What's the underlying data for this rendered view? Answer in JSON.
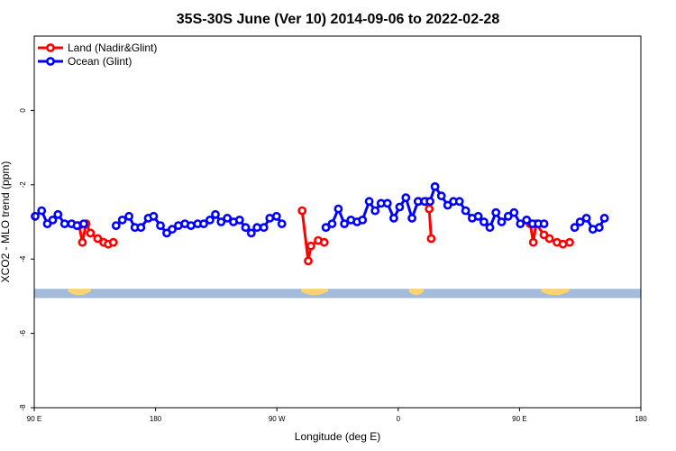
{
  "chart_data": {
    "type": "line",
    "title": "35S-30S June (Ver 10)   2014-09-06 to 2022-02-28",
    "xlabel": "Longitude (deg E)",
    "ylabel": "XCO2 - MLO trend (ppm)",
    "xlim": [
      90,
      540
    ],
    "ylim": [
      -8,
      2
    ],
    "x_ticks": [
      {
        "value": 90,
        "label": "90 E"
      },
      {
        "value": 180,
        "label": "180"
      },
      {
        "value": 270,
        "label": "90 W"
      },
      {
        "value": 360,
        "label": "0"
      },
      {
        "value": 450,
        "label": "90 E"
      },
      {
        "value": 540,
        "label": "180"
      }
    ],
    "y_ticks": [
      {
        "value": 0,
        "label": "0"
      },
      {
        "value": -2,
        "label": "-2"
      },
      {
        "value": -4,
        "label": "-4"
      },
      {
        "value": -6,
        "label": "-6"
      },
      {
        "value": -8,
        "label": "-8"
      }
    ],
    "legend_position": "top-left",
    "series": [
      {
        "name": "Land (Nadir&Glint)",
        "color": "#ff0000",
        "segments": [
          [
            [
              123.3,
              -3.1
            ],
            [
              125.7,
              -3.55
            ],
            [
              128.5,
              -3.05
            ],
            [
              131.7,
              -3.3
            ],
            [
              137.1,
              -3.45
            ],
            [
              141.5,
              -3.55
            ],
            [
              144.9,
              -3.6
            ],
            [
              148.7,
              -3.55
            ]
          ],
          [
            [
              288.7,
              -2.7
            ],
            [
              293.3,
              -4.05
            ],
            [
              295.2,
              -3.65
            ],
            [
              300.6,
              -3.5
            ],
            [
              305.1,
              -3.55
            ]
          ],
          [
            [
              375.2,
              -2.45
            ],
            [
              380.6,
              -2.45
            ],
            [
              383.0,
              -2.65
            ],
            [
              384.5,
              -3.45
            ]
          ],
          [
            [
              457.9,
              -3.05
            ],
            [
              460.2,
              -3.55
            ],
            [
              462.3,
              -3.05
            ],
            [
              468.1,
              -3.35
            ],
            [
              472.2,
              -3.45
            ],
            [
              477.8,
              -3.55
            ],
            [
              482.2,
              -3.6
            ],
            [
              487.2,
              -3.55
            ]
          ]
        ]
      },
      {
        "name": "Ocean (Glint)",
        "color": "#0000ff",
        "points": [
          [
            90.7,
            -2.85
          ],
          [
            95.5,
            -2.7
          ],
          [
            99.7,
            -3.05
          ],
          [
            103.7,
            -2.95
          ],
          [
            107.6,
            -2.8
          ],
          [
            112.5,
            -3.05
          ],
          [
            117.7,
            -3.05
          ],
          [
            121.7,
            -3.1
          ],
          [
            126.7,
            -3.05
          ],
          [
            150.7,
            -3.1
          ],
          [
            155.3,
            -2.95
          ],
          [
            160.3,
            -2.85
          ],
          [
            164.7,
            -3.15
          ],
          [
            169.1,
            -3.15
          ],
          [
            174.6,
            -2.9
          ],
          [
            178.5,
            -2.85
          ],
          [
            183.6,
            -3.1
          ],
          [
            188.3,
            -3.3
          ],
          [
            192.3,
            -3.2
          ],
          [
            196.9,
            -3.1
          ],
          [
            201.7,
            -3.05
          ],
          [
            206.3,
            -3.1
          ],
          [
            211.2,
            -3.05
          ],
          [
            215.7,
            -3.05
          ],
          [
            220.3,
            -2.95
          ],
          [
            224.4,
            -2.8
          ],
          [
            228.6,
            -3.0
          ],
          [
            233.2,
            -2.9
          ],
          [
            237.8,
            -3.0
          ],
          [
            242.3,
            -2.95
          ],
          [
            246.8,
            -3.15
          ],
          [
            251.0,
            -3.3
          ],
          [
            255.3,
            -3.15
          ],
          [
            260.3,
            -3.15
          ],
          [
            264.7,
            -2.9
          ],
          [
            269.7,
            -2.85
          ],
          [
            273.7,
            -3.05
          ],
          [
            306.4,
            -3.15
          ],
          [
            310.9,
            -3.05
          ],
          [
            315.6,
            -2.65
          ],
          [
            320.1,
            -3.05
          ],
          [
            324.9,
            -2.95
          ],
          [
            329.5,
            -3.0
          ],
          [
            333.5,
            -2.95
          ],
          [
            338.5,
            -2.45
          ],
          [
            342.9,
            -2.7
          ],
          [
            347.3,
            -2.5
          ],
          [
            352.0,
            -2.5
          ],
          [
            356.7,
            -2.9
          ],
          [
            361.1,
            -2.6
          ],
          [
            365.7,
            -2.35
          ],
          [
            370.2,
            -2.9
          ],
          [
            374.7,
            -2.45
          ],
          [
            379.6,
            -2.45
          ],
          [
            383.6,
            -2.45
          ],
          [
            387.3,
            -2.05
          ],
          [
            392.0,
            -2.3
          ],
          [
            396.7,
            -2.55
          ],
          [
            401.0,
            -2.45
          ],
          [
            405.4,
            -2.45
          ],
          [
            410.0,
            -2.7
          ],
          [
            414.9,
            -2.9
          ],
          [
            419.4,
            -2.85
          ],
          [
            423.6,
            -3.0
          ],
          [
            428.0,
            -3.15
          ],
          [
            432.5,
            -2.75
          ],
          [
            436.7,
            -3.0
          ],
          [
            441.6,
            -2.85
          ],
          [
            445.9,
            -2.75
          ],
          [
            450.6,
            -3.05
          ],
          [
            455.3,
            -2.95
          ],
          [
            459.6,
            -3.05
          ],
          [
            464.0,
            -3.05
          ],
          [
            468.2,
            -3.05
          ],
          [
            490.9,
            -3.15
          ],
          [
            494.9,
            -3.0
          ],
          [
            499.6,
            -2.9
          ],
          [
            504.4,
            -3.2
          ],
          [
            509.1,
            -3.15
          ],
          [
            513.0,
            -2.9
          ]
        ]
      }
    ],
    "land_mask": {
      "base_color": "#a4bcd9",
      "land_color": "#ffd470",
      "y_range": [
        -5.05,
        -4.8
      ],
      "land_spans": [
        [
          115,
          132
        ],
        [
          288,
          308
        ],
        [
          368,
          379
        ],
        [
          466,
          487
        ]
      ]
    }
  }
}
